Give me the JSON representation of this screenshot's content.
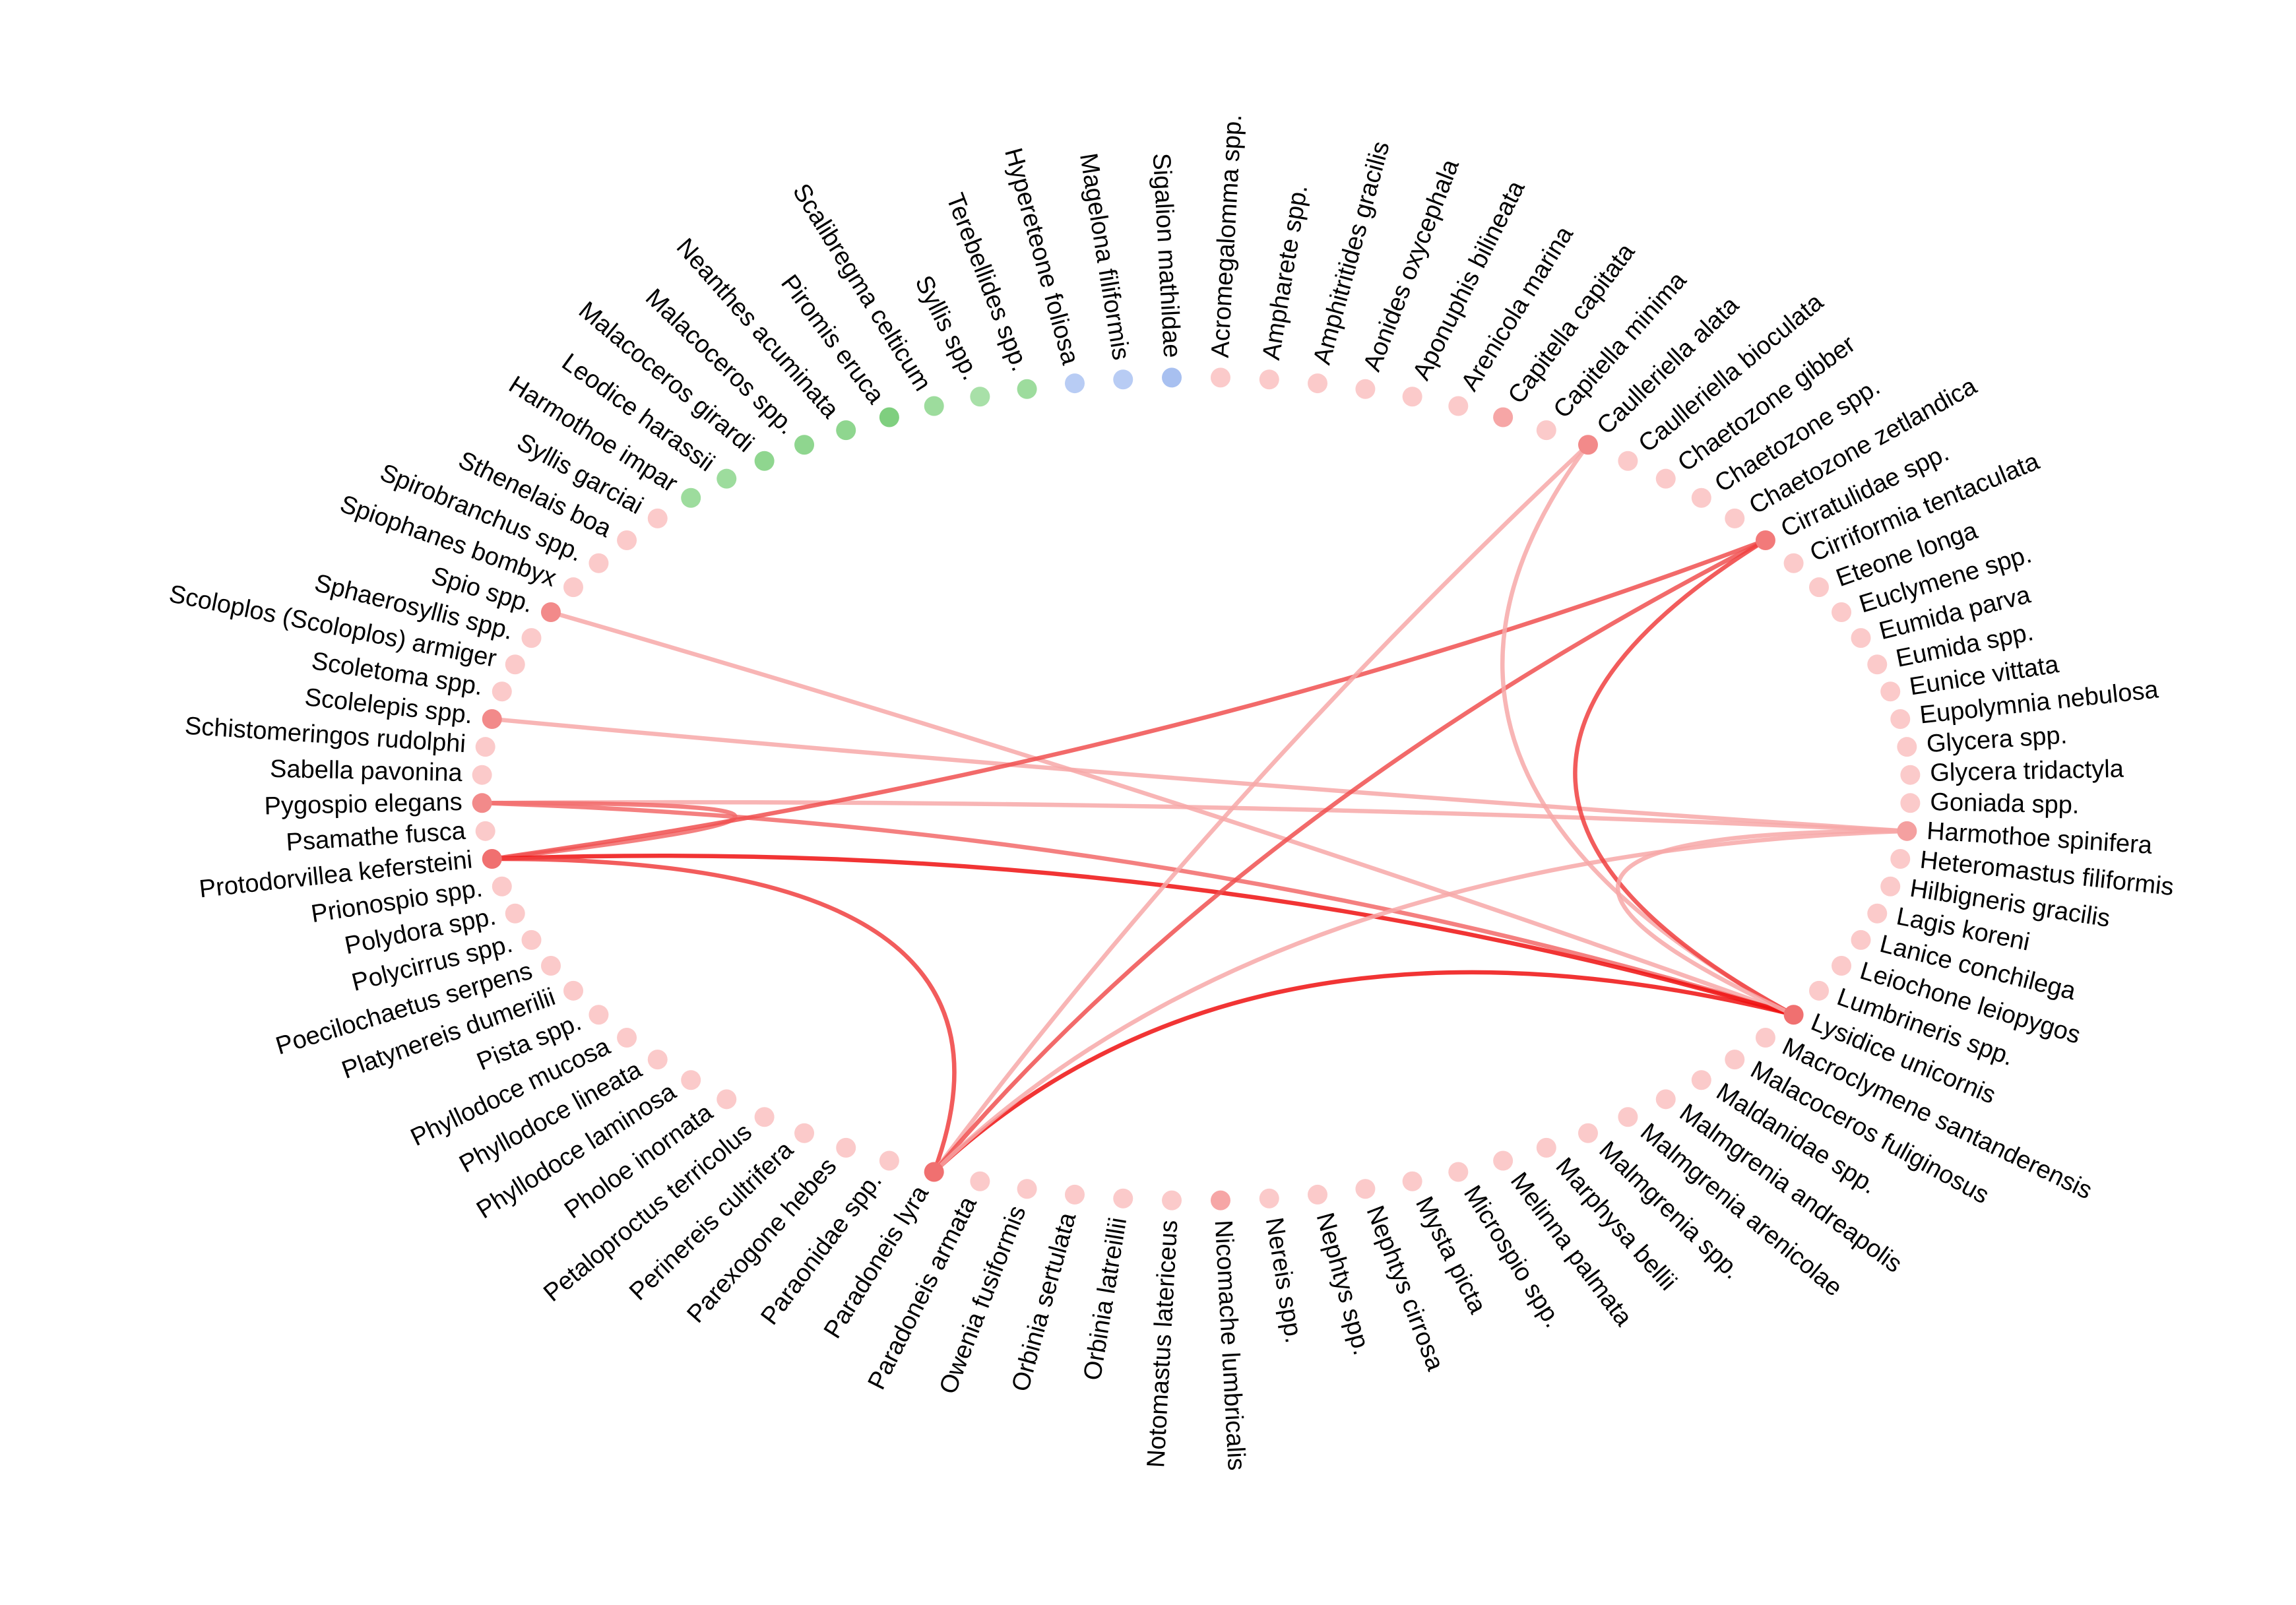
{
  "nodes": [
    {
      "label": "Acromegalomma spp.",
      "color": "#fbcaca"
    },
    {
      "label": "Ampharete spp.",
      "color": "#fbcaca"
    },
    {
      "label": "Amphitritides gracilis",
      "color": "#fbcaca"
    },
    {
      "label": "Aonides oxycephala",
      "color": "#fbcaca"
    },
    {
      "label": "Aponuphis bilineata",
      "color": "#fbcaca"
    },
    {
      "label": "Arenicola marina",
      "color": "#fbcaca"
    },
    {
      "label": "Capitella capitata",
      "color": "#f6a6a6"
    },
    {
      "label": "Capitella minima",
      "color": "#fbcaca"
    },
    {
      "label": "Caulleriella alata",
      "color": "#f28a8a"
    },
    {
      "label": "Caulleriella bioculata",
      "color": "#fbcaca"
    },
    {
      "label": "Chaetozone gibber",
      "color": "#fbcaca"
    },
    {
      "label": "Chaetozone spp.",
      "color": "#fbcaca"
    },
    {
      "label": "Chaetozone zetlandica",
      "color": "#fbcaca"
    },
    {
      "label": "Cirratulidae spp.",
      "color": "#f27a7a"
    },
    {
      "label": "Cirriformia tentaculata",
      "color": "#fbcaca"
    },
    {
      "label": "Eteone longa",
      "color": "#fbcaca"
    },
    {
      "label": "Euclymene spp.",
      "color": "#fbcaca"
    },
    {
      "label": "Eumida parva",
      "color": "#fbcaca"
    },
    {
      "label": "Eumida spp.",
      "color": "#fbcaca"
    },
    {
      "label": "Eunice vittata",
      "color": "#fbcaca"
    },
    {
      "label": "Eupolymnia nebulosa",
      "color": "#fbcaca"
    },
    {
      "label": "Glycera spp.",
      "color": "#fbcaca"
    },
    {
      "label": "Glycera tridactyla",
      "color": "#fbcaca"
    },
    {
      "label": "Goniada spp.",
      "color": "#fbcaca"
    },
    {
      "label": "Harmothoe spinifera",
      "color": "#f4a0a0"
    },
    {
      "label": "Heteromastus filiformis",
      "color": "#fbcaca"
    },
    {
      "label": "Hilbigneris gracilis",
      "color": "#fbcaca"
    },
    {
      "label": "Lagis koreni",
      "color": "#fbcaca"
    },
    {
      "label": "Lanice conchilega",
      "color": "#fbcaca"
    },
    {
      "label": "Leiochone leiopygos",
      "color": "#fbcaca"
    },
    {
      "label": "Lumbrineris spp.",
      "color": "#fbcaca"
    },
    {
      "label": "Lysidice unicornis",
      "color": "#f07070"
    },
    {
      "label": "Macroclymene santanderensis",
      "color": "#fbcaca"
    },
    {
      "label": "Malacoceros fuliginosus",
      "color": "#fbcaca"
    },
    {
      "label": "Maldanidae spp.",
      "color": "#fbcaca"
    },
    {
      "label": "Malmgrenia andreapolis",
      "color": "#fbcaca"
    },
    {
      "label": "Malmgrenia arenicolae",
      "color": "#fbcaca"
    },
    {
      "label": "Malmgrenia spp.",
      "color": "#fbcaca"
    },
    {
      "label": "Marphysa bellii",
      "color": "#fbcaca"
    },
    {
      "label": "Melinna palmata",
      "color": "#fbcaca"
    },
    {
      "label": "Microspio spp.",
      "color": "#fbcaca"
    },
    {
      "label": "Mysta picta",
      "color": "#fbcaca"
    },
    {
      "label": "Nephtys cirrosa",
      "color": "#fbcaca"
    },
    {
      "label": "Nephtys spp.",
      "color": "#fbcaca"
    },
    {
      "label": "Nereis spp.",
      "color": "#fbcaca"
    },
    {
      "label": "Nicomache lumbricalis",
      "color": "#f6a6a6"
    },
    {
      "label": "Notomastus latericeus",
      "color": "#fbcaca"
    },
    {
      "label": "Orbinia latreillii",
      "color": "#fbcaca"
    },
    {
      "label": "Orbinia sertulata",
      "color": "#fbcaca"
    },
    {
      "label": "Owenia fusiformis",
      "color": "#fbcaca"
    },
    {
      "label": "Paradoneis armata",
      "color": "#fbcaca"
    },
    {
      "label": "Paradoneis lyra",
      "color": "#f07070"
    },
    {
      "label": "Paraonidae spp.",
      "color": "#fbcaca"
    },
    {
      "label": "Parexogone hebes",
      "color": "#fbcaca"
    },
    {
      "label": "Perinereis cultrifera",
      "color": "#fbcaca"
    },
    {
      "label": "Petaloproctus terricolus",
      "color": "#fbcaca"
    },
    {
      "label": "Pholoe inornata",
      "color": "#fbcaca"
    },
    {
      "label": "Phyllodoce laminosa",
      "color": "#fbcaca"
    },
    {
      "label": "Phyllodoce lineata",
      "color": "#fbcaca"
    },
    {
      "label": "Phyllodoce mucosa",
      "color": "#fbcaca"
    },
    {
      "label": "Pista spp.",
      "color": "#fbcaca"
    },
    {
      "label": "Platynereis dumerilii",
      "color": "#fbcaca"
    },
    {
      "label": "Poecilochaetus serpens",
      "color": "#fbcaca"
    },
    {
      "label": "Polycirrus spp.",
      "color": "#fbcaca"
    },
    {
      "label": "Polydora spp.",
      "color": "#fbcaca"
    },
    {
      "label": "Prionospio spp.",
      "color": "#fbcaca"
    },
    {
      "label": "Protodorvillea kefersteini",
      "color": "#f07070"
    },
    {
      "label": "Psamathe fusca",
      "color": "#fbcaca"
    },
    {
      "label": "Pygospio elegans",
      "color": "#f28a8a"
    },
    {
      "label": "Sabella pavonina",
      "color": "#fbcaca"
    },
    {
      "label": "Schistomeringos rudolphi",
      "color": "#fbcaca"
    },
    {
      "label": "Scolelepis spp.",
      "color": "#f28a8a"
    },
    {
      "label": "Scoletoma spp.",
      "color": "#fbcaca"
    },
    {
      "label": "Scoloplos (Scoloplos) armiger",
      "color": "#fbcaca"
    },
    {
      "label": "Sphaerosyllis spp.",
      "color": "#fbcaca"
    },
    {
      "label": "Spio spp.",
      "color": "#f28a8a"
    },
    {
      "label": "Spiophanes bombyx",
      "color": "#fbcaca"
    },
    {
      "label": "Spirobranchus spp.",
      "color": "#fbcaca"
    },
    {
      "label": "Sthenelais boa",
      "color": "#fbcaca"
    },
    {
      "label": "Syllis garciai",
      "color": "#fbcaca"
    },
    {
      "label": "Harmothoe impar",
      "color": "#9ddc9d"
    },
    {
      "label": "Leodice harassii",
      "color": "#9ddc9d"
    },
    {
      "label": "Malacoceros girardi",
      "color": "#8fd68f"
    },
    {
      "label": "Malacoceros spp.",
      "color": "#8fd68f"
    },
    {
      "label": "Neanthes acuminata",
      "color": "#8fd68f"
    },
    {
      "label": "Piromis eruca",
      "color": "#7fcf7f"
    },
    {
      "label": "Scalibregma celticum",
      "color": "#9ddc9d"
    },
    {
      "label": "Syllis spp.",
      "color": "#a8e0a8"
    },
    {
      "label": "Terebellides spp.",
      "color": "#9ddc9d"
    },
    {
      "label": "Hypereteone foliosa",
      "color": "#b8ccf4"
    },
    {
      "label": "Magelona filiformis",
      "color": "#b8ccf4"
    },
    {
      "label": "Sigalion mathildae",
      "color": "#a8c0f0"
    }
  ],
  "edges": [
    {
      "source": 75,
      "target": 31,
      "color": "#f7a8a8"
    },
    {
      "source": 71,
      "target": 24,
      "color": "#f7a8a8"
    },
    {
      "source": 68,
      "target": 31,
      "color": "#f26a6a"
    },
    {
      "source": 68,
      "target": 24,
      "color": "#f7a8a8"
    },
    {
      "source": 68,
      "target": 66,
      "color": "#f26a6a"
    },
    {
      "source": 66,
      "target": 13,
      "color": "#f05050"
    },
    {
      "source": 66,
      "target": 31,
      "color": "#ee1010"
    },
    {
      "source": 66,
      "target": 51,
      "color": "#f04040"
    },
    {
      "source": 51,
      "target": 8,
      "color": "#f7a8a8"
    },
    {
      "source": 51,
      "target": 13,
      "color": "#f05050"
    },
    {
      "source": 51,
      "target": 31,
      "color": "#ee1010"
    },
    {
      "source": 51,
      "target": 24,
      "color": "#f7a8a8"
    },
    {
      "source": 8,
      "target": 31,
      "color": "#f7a8a8"
    },
    {
      "source": 13,
      "target": 31,
      "color": "#f04040"
    },
    {
      "source": 24,
      "target": 31,
      "color": "#f7a8a8"
    }
  ]
}
